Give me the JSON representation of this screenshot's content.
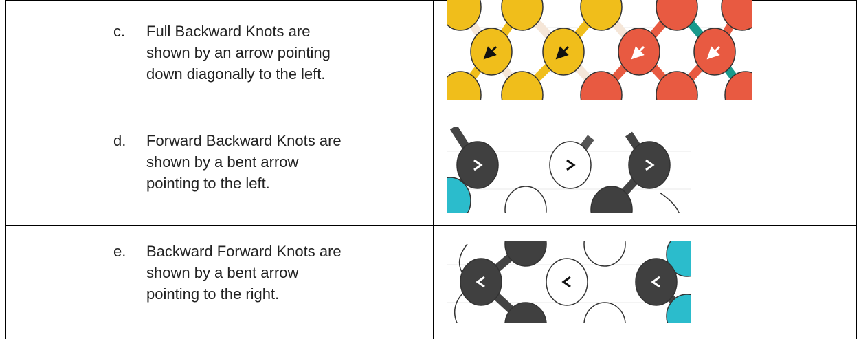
{
  "items": [
    {
      "marker": "c.",
      "lines": [
        "Full Backward Knots are",
        "shown by an arrow pointing",
        "down diagonally to the left."
      ]
    },
    {
      "marker": "d.",
      "lines": [
        "Forward Backward Knots are",
        "shown by a bent arrow",
        "pointing to the left."
      ]
    },
    {
      "marker": "e.",
      "lines": [
        "Backward Forward Knots are",
        "shown by a bent arrow",
        "pointing to the right."
      ]
    }
  ]
}
